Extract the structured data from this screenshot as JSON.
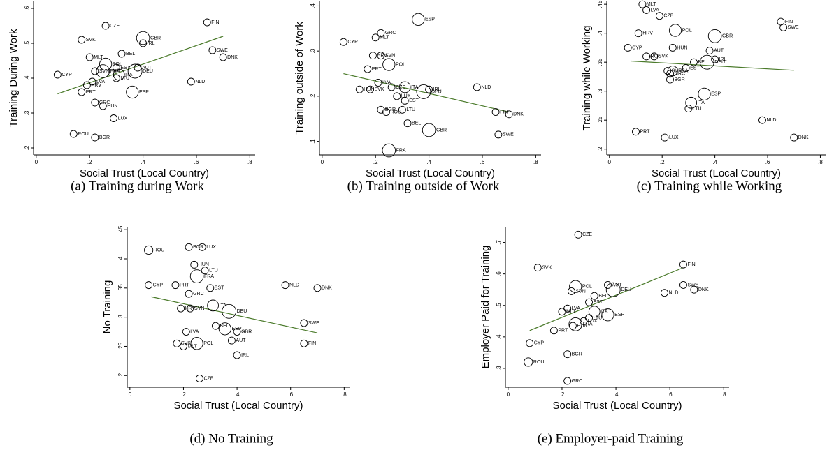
{
  "chart_data": [
    {
      "type": "scatter",
      "caption": "(a) Training during Work",
      "xlabel": "Social Trust (Local Country)",
      "ylabel": "Training During Work",
      "labels": [
        "CZE",
        "FIN",
        "SVK",
        "GBR",
        "IRL",
        "SWE",
        "DNK",
        "MLT",
        "BEL",
        "POL",
        "EST",
        "AUT",
        "SVN",
        "FRA",
        "DEU",
        "ITA",
        "LTU",
        "CYP",
        "LVA",
        "HRV",
        "PRT",
        "NLD",
        "ESP",
        "GRC",
        "HUN",
        "LUX",
        "ROU",
        "BGR"
      ],
      "x": [
        0.26,
        0.64,
        0.17,
        0.4,
        0.4,
        0.66,
        0.7,
        0.2,
        0.32,
        0.26,
        0.3,
        0.38,
        0.22,
        0.25,
        0.37,
        0.31,
        0.3,
        0.08,
        0.21,
        0.19,
        0.17,
        0.58,
        0.36,
        0.22,
        0.25,
        0.29,
        0.14,
        0.22
      ],
      "values": [
        0.55,
        0.56,
        0.51,
        0.515,
        0.5,
        0.48,
        0.46,
        0.46,
        0.47,
        0.44,
        0.43,
        0.43,
        0.42,
        0.42,
        0.42,
        0.41,
        0.4,
        0.41,
        0.39,
        0.38,
        0.36,
        0.39,
        0.36,
        0.33,
        0.32,
        0.285,
        0.24,
        0.23
      ],
      "sizes": [
        1,
        1,
        1,
        3.5,
        1,
        1,
        1,
        1,
        1,
        3,
        1,
        1,
        1,
        3.5,
        4,
        2.5,
        1,
        1,
        1,
        1,
        1,
        1,
        3,
        1,
        1,
        1,
        1,
        1
      ],
      "fit": {
        "x": [
          0.08,
          0.7
        ],
        "values": [
          0.355,
          0.52
        ]
      },
      "color": "#4a7a2a",
      "xlim": [
        -0.01,
        0.82
      ],
      "ylim": [
        0.18,
        0.62
      ],
      "xticks": [
        0,
        {
          "value": 0.2,
          "label": ".2"
        },
        {
          "value": 0.4,
          "label": ".4"
        },
        {
          "value": 0.6,
          "label": ".6"
        },
        {
          "value": 0.8,
          "label": ".8"
        }
      ],
      "yticks": [
        {
          "value": 0.2,
          "label": ".2"
        },
        {
          "value": 0.3,
          "label": ".3"
        },
        {
          "value": 0.4,
          "label": ".4"
        },
        {
          "value": 0.5,
          "label": ".5"
        },
        {
          "value": 0.6,
          "label": ".6"
        }
      ]
    },
    {
      "type": "scatter",
      "caption": "(b) Training outside of Work",
      "xlabel": "Social Trust (Local Country)",
      "ylabel": "Training outside of Work",
      "labels": [
        "ESP",
        "GRC",
        "MLT",
        "CYP",
        "HRV",
        "SVN",
        "POL",
        "PRT",
        "LVA",
        "CZE",
        "ITA",
        "LUX",
        "EST",
        "DEU",
        "IRL",
        "NLD",
        "HUN",
        "SVK",
        "BGR",
        "ROU",
        "LTU",
        "BEL",
        "GBR",
        "FIN",
        "DNK",
        "SWE",
        "FRA"
      ],
      "x": [
        0.36,
        0.22,
        0.2,
        0.08,
        0.19,
        0.22,
        0.25,
        0.17,
        0.21,
        0.26,
        0.31,
        0.28,
        0.31,
        0.38,
        0.4,
        0.58,
        0.14,
        0.18,
        0.22,
        0.24,
        0.3,
        0.32,
        0.4,
        0.65,
        0.7,
        0.66,
        0.25
      ],
      "values": [
        0.37,
        0.34,
        0.33,
        0.32,
        0.29,
        0.29,
        0.27,
        0.26,
        0.23,
        0.22,
        0.22,
        0.2,
        0.19,
        0.21,
        0.215,
        0.22,
        0.215,
        0.215,
        0.17,
        0.165,
        0.17,
        0.14,
        0.125,
        0.165,
        0.16,
        0.115,
        0.08
      ],
      "sizes": [
        3,
        1,
        1,
        1,
        1,
        1,
        3,
        1,
        1,
        1,
        2.5,
        1,
        1,
        4,
        1,
        1,
        1,
        1,
        1,
        1,
        1,
        1,
        3.5,
        1,
        1,
        1,
        3.5
      ],
      "fit": {
        "x": [
          0.08,
          0.7
        ],
        "values": [
          0.25,
          0.165
        ]
      },
      "color": "#4a7a2a",
      "xlim": [
        -0.01,
        0.82
      ],
      "ylim": [
        0.07,
        0.41
      ],
      "xticks": [
        0,
        {
          "value": 0.2,
          "label": ".2"
        },
        {
          "value": 0.4,
          "label": ".4"
        },
        {
          "value": 0.6,
          "label": ".6"
        },
        {
          "value": 0.8,
          "label": ".8"
        }
      ],
      "yticks": [
        {
          "value": 0.1,
          "label": ".1"
        },
        {
          "value": 0.2,
          "label": ".2"
        },
        {
          "value": 0.3,
          "label": ".3"
        },
        {
          "value": 0.4,
          "label": ".4"
        }
      ]
    },
    {
      "type": "scatter",
      "caption": "(c) Training while Working",
      "xlabel": "Social Trust (Local Country)",
      "ylabel": "Training while Working",
      "labels": [
        "MLT",
        "LVA",
        "CZE",
        "FIN",
        "SWE",
        "POL",
        "HRV",
        "GBR",
        "CYP",
        "HUN",
        "AUT",
        "SVK",
        "ROU",
        "IRL",
        "BEL",
        "DEU",
        "EST",
        "SVN",
        "FRA",
        "GRC",
        "BGR",
        "ESP",
        "ITA",
        "LTU",
        "NLD",
        "PRT",
        "LUX",
        "DNK"
      ],
      "x": [
        0.125,
        0.14,
        0.19,
        0.65,
        0.66,
        0.25,
        0.11,
        0.4,
        0.07,
        0.24,
        0.38,
        0.17,
        0.14,
        0.4,
        0.32,
        0.37,
        0.29,
        0.22,
        0.24,
        0.23,
        0.23,
        0.36,
        0.31,
        0.3,
        0.58,
        0.1,
        0.21,
        0.7
      ],
      "values": [
        0.45,
        0.44,
        0.43,
        0.42,
        0.41,
        0.405,
        0.4,
        0.395,
        0.375,
        0.375,
        0.37,
        0.36,
        0.36,
        0.355,
        0.35,
        0.35,
        0.34,
        0.335,
        0.335,
        0.33,
        0.32,
        0.295,
        0.28,
        0.27,
        0.25,
        0.23,
        0.22,
        0.22
      ],
      "sizes": [
        1,
        1,
        1,
        1,
        1,
        3,
        1,
        3.5,
        1,
        1,
        1,
        1,
        1,
        1,
        1,
        4,
        1,
        1,
        2,
        1,
        1,
        3,
        2.5,
        1,
        1,
        1,
        1,
        1
      ],
      "fit": {
        "x": [
          0.08,
          0.7
        ],
        "values": [
          0.352,
          0.336
        ]
      },
      "color": "#4a7a2a",
      "xlim": [
        -0.01,
        0.82
      ],
      "ylim": [
        0.19,
        0.455
      ],
      "xticks": [
        0,
        {
          "value": 0.2,
          "label": ".2"
        },
        {
          "value": 0.4,
          "label": ".4"
        },
        {
          "value": 0.6,
          "label": ".6"
        },
        {
          "value": 0.8,
          "label": ".8"
        }
      ],
      "yticks": [
        {
          "value": 0.2,
          "label": ".2"
        },
        {
          "value": 0.25,
          "label": ".25"
        },
        {
          "value": 0.3,
          "label": ".3"
        },
        {
          "value": 0.35,
          "label": ".35"
        },
        {
          "value": 0.4,
          "label": ".4"
        },
        {
          "value": 0.45,
          "label": ".45"
        }
      ]
    },
    {
      "type": "scatter",
      "caption": "(d) No Training",
      "xlabel": "Social Trust (Local Country)",
      "ylabel": "No Training",
      "labels": [
        "ROU",
        "BGR",
        "LUX",
        "HUN",
        "LTU",
        "FRA",
        "CYP",
        "PRT",
        "EST",
        "NLD",
        "DNK",
        "GRC",
        "ITA",
        "HRV",
        "SVN",
        "DEU",
        "SWE",
        "BEL",
        "ESP",
        "GBR",
        "LVA",
        "AUT",
        "SVK",
        "MLT",
        "POL",
        "FIN",
        "IRL",
        "CZE"
      ],
      "x": [
        0.07,
        0.22,
        0.27,
        0.24,
        0.28,
        0.25,
        0.07,
        0.17,
        0.3,
        0.58,
        0.7,
        0.22,
        0.31,
        0.19,
        0.225,
        0.37,
        0.65,
        0.32,
        0.355,
        0.4,
        0.21,
        0.38,
        0.175,
        0.2,
        0.25,
        0.65,
        0.4,
        0.26
      ],
      "values": [
        0.415,
        0.42,
        0.42,
        0.39,
        0.38,
        0.37,
        0.355,
        0.355,
        0.35,
        0.355,
        0.35,
        0.34,
        0.32,
        0.315,
        0.315,
        0.31,
        0.29,
        0.285,
        0.28,
        0.275,
        0.275,
        0.26,
        0.255,
        0.25,
        0.255,
        0.255,
        0.235,
        0.195
      ],
      "sizes": [
        1.5,
        1,
        1,
        1,
        1,
        3.5,
        1,
        1,
        1,
        1,
        1,
        1,
        2.5,
        1,
        1,
        4,
        1,
        1,
        3,
        1,
        1,
        1,
        1,
        1,
        3,
        1,
        1,
        1
      ],
      "fit": {
        "x": [
          0.08,
          0.7
        ],
        "values": [
          0.335,
          0.273
        ]
      },
      "color": "#4a7a2a",
      "xlim": [
        -0.01,
        0.82
      ],
      "ylim": [
        0.18,
        0.455
      ],
      "xticks": [
        0,
        {
          "value": 0.2,
          "label": ".2"
        },
        {
          "value": 0.4,
          "label": ".4"
        },
        {
          "value": 0.6,
          "label": ".6"
        },
        {
          "value": 0.8,
          "label": ".8"
        }
      ],
      "yticks": [
        {
          "value": 0.2,
          "label": ".2"
        },
        {
          "value": 0.25,
          "label": ".25"
        },
        {
          "value": 0.3,
          "label": ".3"
        },
        {
          "value": 0.35,
          "label": ".35"
        },
        {
          "value": 0.4,
          "label": ".4"
        },
        {
          "value": 0.45,
          "label": ".45"
        }
      ]
    },
    {
      "type": "scatter",
      "caption": "(e) Employer-paid Training",
      "xlabel": "Social Trust (Local Country)",
      "ylabel": "Employer Paid for Training",
      "labels": [
        "CZE",
        "FIN",
        "SVK",
        "POL",
        "AUT",
        "DEU",
        "SWE",
        "DNK",
        "SVN",
        "NLD",
        "BEL",
        "EST",
        "LVA",
        "MLT",
        "ITA",
        "ESP",
        "LTU",
        "LUX",
        "FRA",
        "HUN",
        "PRT",
        "CYP",
        "BGR",
        "ROU",
        "GRC"
      ],
      "x": [
        0.26,
        0.65,
        0.11,
        0.25,
        0.37,
        0.39,
        0.65,
        0.69,
        0.235,
        0.58,
        0.32,
        0.3,
        0.22,
        0.2,
        0.32,
        0.37,
        0.3,
        0.28,
        0.25,
        0.24,
        0.17,
        0.08,
        0.22,
        0.075,
        0.22
      ],
      "values": [
        0.725,
        0.63,
        0.62,
        0.56,
        0.565,
        0.55,
        0.565,
        0.55,
        0.545,
        0.54,
        0.53,
        0.51,
        0.49,
        0.48,
        0.48,
        0.47,
        0.46,
        0.45,
        0.44,
        0.435,
        0.42,
        0.38,
        0.345,
        0.32,
        0.26
      ],
      "sizes": [
        1,
        1,
        1,
        3,
        1,
        4,
        1,
        1,
        1,
        1,
        1,
        1,
        1,
        1,
        2.5,
        3,
        1,
        1,
        3.5,
        1,
        1,
        1,
        1,
        1.5,
        1
      ],
      "fit": {
        "x": [
          0.08,
          0.65
        ],
        "values": [
          0.42,
          0.62
        ]
      },
      "color": "#4a7a2a",
      "xlim": [
        -0.01,
        0.82
      ],
      "ylim": [
        0.24,
        0.75
      ],
      "xticks": [
        0,
        {
          "value": 0.2,
          "label": ".2"
        },
        {
          "value": 0.4,
          "label": ".4"
        },
        {
          "value": 0.6,
          "label": ".6"
        },
        {
          "value": 0.8,
          "label": ".8"
        }
      ],
      "yticks": [
        {
          "value": 0.3,
          "label": ".3"
        },
        {
          "value": 0.4,
          "label": ".4"
        },
        {
          "value": 0.5,
          "label": ".5"
        },
        {
          "value": 0.6,
          "label": ".6"
        },
        {
          "value": 0.7,
          "label": ".7"
        }
      ]
    }
  ]
}
